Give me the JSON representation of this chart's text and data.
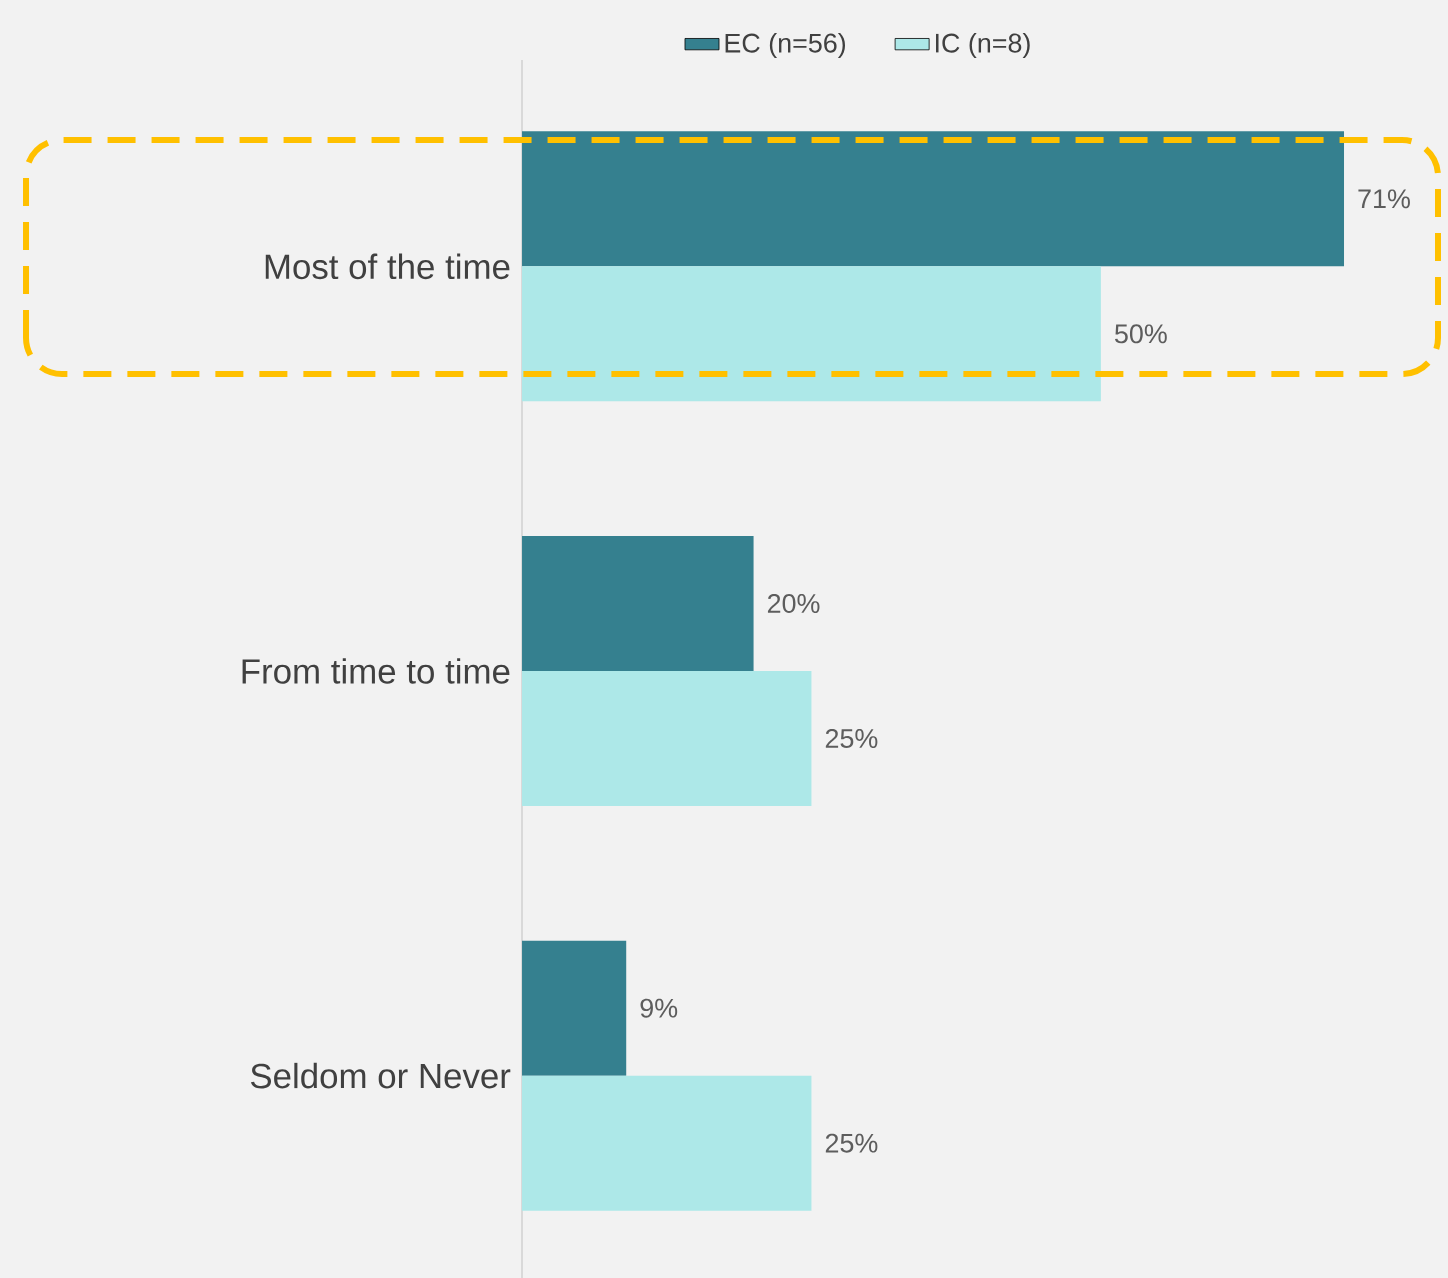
{
  "chart_data": {
    "type": "bar",
    "orientation": "horizontal",
    "categories": [
      "Most of the time",
      "From time to time",
      "Seldom or Never"
    ],
    "series": [
      {
        "name": "EC (n=56)",
        "color": "#35808f",
        "values": [
          71,
          20,
          9
        ],
        "value_labels": [
          "71%",
          "20%",
          "9%"
        ]
      },
      {
        "name": "IC (n=8)",
        "color": "#ade8e8",
        "values": [
          50,
          25,
          25
        ],
        "value_labels": [
          "50%",
          "25%",
          "25%"
        ]
      }
    ],
    "legend": "top"
  }
}
